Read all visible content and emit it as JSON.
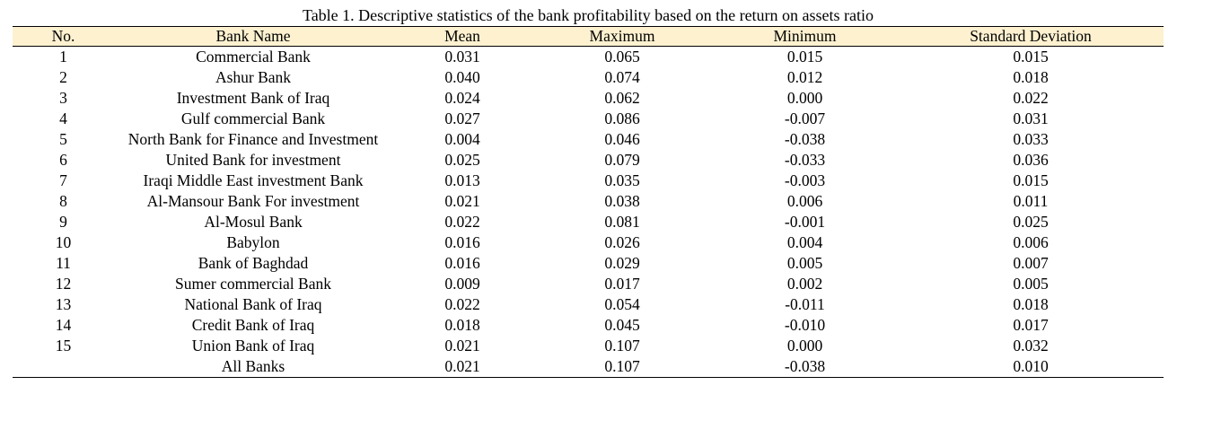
{
  "table": {
    "title": "Table 1. Descriptive statistics of the bank profitability based on the return on assets ratio",
    "header": [
      "No.",
      "Bank Name",
      "Mean",
      "Maximum",
      "Minimum",
      "Standard Deviation"
    ],
    "rows": [
      [
        "1",
        "Commercial Bank",
        "0.031",
        "0.065",
        "0.015",
        "0.015"
      ],
      [
        "2",
        "Ashur Bank",
        "0.040",
        "0.074",
        "0.012",
        "0.018"
      ],
      [
        "3",
        "Investment Bank of Iraq",
        "0.024",
        "0.062",
        "0.000",
        "0.022"
      ],
      [
        "4",
        "Gulf commercial Bank",
        "0.027",
        "0.086",
        "-0.007",
        "0.031"
      ],
      [
        "5",
        "North Bank for Finance and Investment",
        "0.004",
        "0.046",
        "-0.038",
        "0.033"
      ],
      [
        "6",
        "United Bank for investment",
        "0.025",
        "0.079",
        "-0.033",
        "0.036"
      ],
      [
        "7",
        "Iraqi Middle East investment Bank",
        "0.013",
        "0.035",
        "-0.003",
        "0.015"
      ],
      [
        "8",
        "Al-Mansour Bank For investment",
        "0.021",
        "0.038",
        "0.006",
        "0.011"
      ],
      [
        "9",
        "Al-Mosul Bank",
        "0.022",
        "0.081",
        "-0.001",
        "0.025"
      ],
      [
        "10",
        "Babylon",
        "0.016",
        "0.026",
        "0.004",
        "0.006"
      ],
      [
        "11",
        "Bank of Baghdad",
        "0.016",
        "0.029",
        "0.005",
        "0.007"
      ],
      [
        "12",
        "Sumer commercial Bank",
        "0.009",
        "0.017",
        "0.002",
        "0.005"
      ],
      [
        "13",
        "National Bank of Iraq",
        "0.022",
        "0.054",
        "-0.011",
        "0.018"
      ],
      [
        "14",
        "Credit Bank of Iraq",
        "0.018",
        "0.045",
        "-0.010",
        "0.017"
      ],
      [
        "15",
        "Union Bank of Iraq",
        "0.021",
        "0.107",
        "0.000",
        "0.032"
      ],
      [
        null,
        "All Banks",
        "0.021",
        "0.107",
        "-0.038",
        "0.010"
      ]
    ]
  }
}
